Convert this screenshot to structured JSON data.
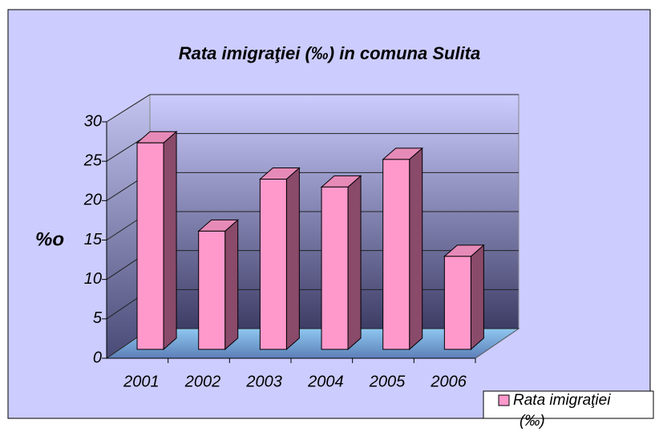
{
  "chart_data": {
    "type": "bar3d",
    "title": "Rata imigraţiei (‰) in  comuna Sulita",
    "y_label": "%o",
    "categories": [
      "2001",
      "2002",
      "2003",
      "2004",
      "2005",
      "2006"
    ],
    "series": [
      {
        "name": "Rata imigraţiei (‰)",
        "color": "#ff99cc",
        "values": [
          26.2,
          15,
          21.6,
          20.6,
          24.1,
          11.8
        ]
      }
    ],
    "ylim": [
      0,
      30
    ],
    "yticks": [
      0,
      5,
      10,
      15,
      20,
      25,
      30
    ],
    "grid": true,
    "legend": "bottom-right"
  }
}
